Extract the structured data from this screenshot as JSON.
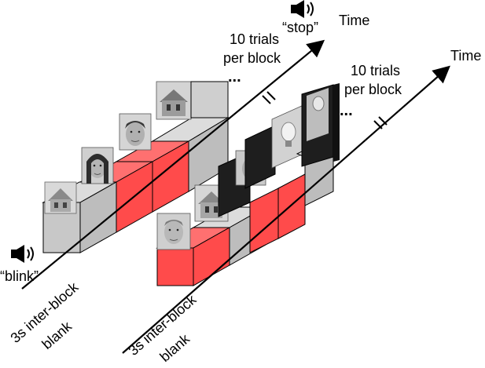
{
  "labels": {
    "time_top": "Time",
    "time_bottom": "Time",
    "stop_cue": "“stop”",
    "blink_cue": "“blink”",
    "trials_top_line1": "10 trials",
    "trials_top_line2": "per block",
    "trials_bottom_line1": "10 trials",
    "trials_bottom_line2": "per block",
    "blank_left_line1": "3s inter-block",
    "blank_left_line2": "blank",
    "blank_right_line1": "3s inter-block",
    "blank_right_line2": "blank",
    "ellipsis": "..."
  },
  "colors": {
    "trial_red": "#ff4b4b",
    "trial_gray": "#c8c8c8",
    "blink_black": "#111111",
    "photo_gray": "#9a9a9a"
  },
  "icons": {
    "speaker": "speaker-icon",
    "photos": [
      "house-photo",
      "face-photo",
      "lightbulb-photo"
    ]
  }
}
